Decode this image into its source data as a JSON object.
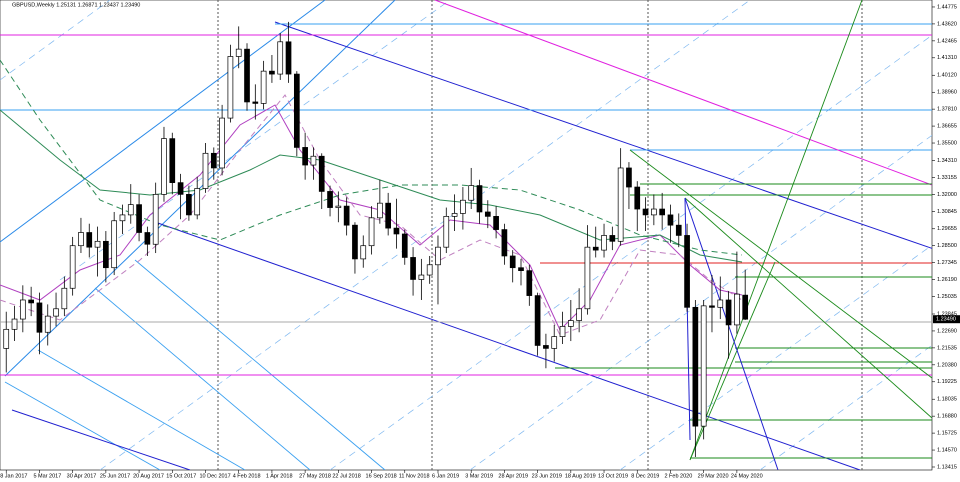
{
  "chart_data": {
    "type": "candlestick",
    "title": "GBPUSD,Weekly 1.25131 1.26871 1.23437 1.23490",
    "last_price_label": "1.23490",
    "xlim": [
      -1.5,
      223
    ],
    "ylim": [
      1.1321,
      1.4525
    ],
    "xticks": [
      {
        "value": 0,
        "label": "8 Jan 2017"
      },
      {
        "value": 8,
        "label": "5 Mar 2017"
      },
      {
        "value": 16,
        "label": "30 Apr 2017"
      },
      {
        "value": 24,
        "label": "25 Jun 2017"
      },
      {
        "value": 32,
        "label": "20 Aug 2017"
      },
      {
        "value": 40,
        "label": "15 Oct 2017"
      },
      {
        "value": 48,
        "label": "10 Dec 2017"
      },
      {
        "value": 56,
        "label": "4 Feb 2018"
      },
      {
        "value": 64,
        "label": "1 Apr 2018"
      },
      {
        "value": 72,
        "label": "27 May 2018"
      },
      {
        "value": 80,
        "label": "22 Jul 2018"
      },
      {
        "value": 88,
        "label": "16 Sep 2018"
      },
      {
        "value": 96,
        "label": "11 Nov 2018"
      },
      {
        "value": 104,
        "label": "6 Jan 2019"
      },
      {
        "value": 112,
        "label": "3 Mar 2019"
      },
      {
        "value": 120,
        "label": "28 Apr 2019"
      },
      {
        "value": 128,
        "label": "23 Jun 2019"
      },
      {
        "value": 136,
        "label": "18 Aug 2019"
      },
      {
        "value": 144,
        "label": "13 Oct 2019"
      },
      {
        "value": 152,
        "label": "8 Dec 2019"
      },
      {
        "value": 160,
        "label": "2 Feb 2020"
      },
      {
        "value": 168,
        "label": "29 Mar 2020"
      },
      {
        "value": 176,
        "label": "24 May 2020"
      }
    ],
    "yticks": [
      {
        "value": 1.44775,
        "label": "1.44775"
      },
      {
        "value": 1.4362,
        "label": "1.43620"
      },
      {
        "value": 1.42465,
        "label": "1.42465"
      },
      {
        "value": 1.4131,
        "label": "1.41310"
      },
      {
        "value": 1.4012,
        "label": "1.40120"
      },
      {
        "value": 1.3896,
        "label": "1.38960"
      },
      {
        "value": 1.3781,
        "label": "1.37810"
      },
      {
        "value": 1.36655,
        "label": "1.36655"
      },
      {
        "value": 1.355,
        "label": "1.35500"
      },
      {
        "value": 1.3431,
        "label": "1.34310"
      },
      {
        "value": 1.33155,
        "label": "1.33155"
      },
      {
        "value": 1.32,
        "label": "1.32000"
      },
      {
        "value": 1.30845,
        "label": "1.30845"
      },
      {
        "value": 1.29655,
        "label": "1.29655"
      },
      {
        "value": 1.285,
        "label": "1.28500"
      },
      {
        "value": 1.27345,
        "label": "1.27345"
      },
      {
        "value": 1.2619,
        "label": "1.26190"
      },
      {
        "value": 1.25035,
        "label": "1.25035"
      },
      {
        "value": 1.23845,
        "label": "1.23845"
      },
      {
        "value": 1.2269,
        "label": "1.22690"
      },
      {
        "value": 1.21535,
        "label": "1.21535"
      },
      {
        "value": 1.2038,
        "label": "1.20380"
      },
      {
        "value": 1.19225,
        "label": "1.19225"
      },
      {
        "value": 1.18035,
        "label": "1.18035"
      },
      {
        "value": 1.1688,
        "label": "1.16880"
      },
      {
        "value": 1.15725,
        "label": "1.15725"
      },
      {
        "value": 1.1457,
        "label": "1.14570"
      },
      {
        "value": 1.13415,
        "label": "1.13415"
      }
    ],
    "x": [
      0,
      2,
      4,
      6,
      8,
      10,
      12,
      14,
      16,
      18,
      20,
      22,
      24,
      26,
      28,
      30,
      32,
      34,
      36,
      38,
      40,
      42,
      44,
      46,
      48,
      50,
      52,
      54,
      56,
      58,
      60,
      62,
      64,
      66,
      68,
      70,
      72,
      74,
      76,
      78,
      80,
      82,
      84,
      86,
      88,
      90,
      92,
      94,
      96,
      98,
      100,
      102,
      104,
      106,
      108,
      110,
      112,
      114,
      116,
      118,
      120,
      122,
      124,
      126,
      128,
      130,
      132,
      134,
      136,
      138,
      140,
      142,
      144,
      146,
      148,
      150,
      152,
      154,
      156,
      158,
      160,
      162,
      164,
      166,
      168,
      170,
      172,
      174,
      176,
      178
    ],
    "open": [
      1.215,
      1.228,
      1.235,
      1.248,
      1.246,
      1.226,
      1.237,
      1.242,
      1.256,
      1.285,
      1.294,
      1.284,
      1.288,
      1.27,
      1.302,
      1.306,
      1.313,
      1.294,
      1.286,
      1.32,
      1.358,
      1.328,
      1.32,
      1.306,
      1.324,
      1.348,
      1.338,
      1.372,
      1.414,
      1.419,
      1.383,
      1.382,
      1.404,
      1.402,
      1.424,
      1.402,
      1.352,
      1.34,
      1.346,
      1.322,
      1.311,
      1.312,
      1.299,
      1.276,
      1.285,
      1.304,
      1.314,
      1.297,
      1.293,
      1.277,
      1.262,
      1.265,
      1.272,
      1.284,
      1.305,
      1.307,
      1.316,
      1.326,
      1.308,
      1.305,
      1.296,
      1.278,
      1.27,
      1.268,
      1.251,
      1.217,
      1.215,
      1.223,
      1.23,
      1.234,
      1.242,
      1.284,
      1.282,
      1.292,
      1.288,
      1.338,
      1.325,
      1.31,
      1.306,
      1.31,
      1.306,
      1.299,
      1.292,
      1.243,
      1.162,
      1.244,
      1.243,
      1.248,
      1.231,
      1.2513
    ],
    "high": [
      1.24,
      1.244,
      1.258,
      1.257,
      1.253,
      1.245,
      1.253,
      1.264,
      1.291,
      1.304,
      1.3,
      1.298,
      1.295,
      1.308,
      1.313,
      1.327,
      1.32,
      1.298,
      1.328,
      1.366,
      1.362,
      1.334,
      1.326,
      1.332,
      1.355,
      1.352,
      1.381,
      1.422,
      1.4345,
      1.423,
      1.395,
      1.411,
      1.415,
      1.43,
      1.4376,
      1.404,
      1.362,
      1.352,
      1.348,
      1.326,
      1.322,
      1.318,
      1.301,
      1.292,
      1.312,
      1.33,
      1.321,
      1.317,
      1.296,
      1.284,
      1.276,
      1.278,
      1.292,
      1.311,
      1.32,
      1.325,
      1.338,
      1.33,
      1.316,
      1.312,
      1.3,
      1.282,
      1.276,
      1.272,
      1.253,
      1.225,
      1.231,
      1.24,
      1.248,
      1.256,
      1.299,
      1.298,
      1.3,
      1.298,
      1.3515,
      1.342,
      1.329,
      1.318,
      1.32,
      1.321,
      1.313,
      1.307,
      1.3,
      1.248,
      1.248,
      1.265,
      1.264,
      1.254,
      1.281,
      1.2687
    ],
    "low": [
      1.1986,
      1.22,
      1.226,
      1.237,
      1.211,
      1.217,
      1.23,
      1.237,
      1.251,
      1.28,
      1.277,
      1.264,
      1.26,
      1.265,
      1.293,
      1.3,
      1.288,
      1.278,
      1.28,
      1.315,
      1.32,
      1.303,
      1.302,
      1.303,
      1.321,
      1.33,
      1.333,
      1.369,
      1.406,
      1.377,
      1.371,
      1.378,
      1.396,
      1.398,
      1.396,
      1.346,
      1.33,
      1.33,
      1.31,
      1.305,
      1.301,
      1.292,
      1.266,
      1.27,
      1.279,
      1.3,
      1.292,
      1.283,
      1.272,
      1.251,
      1.248,
      1.259,
      1.245,
      1.28,
      1.295,
      1.296,
      1.31,
      1.3,
      1.297,
      1.29,
      1.272,
      1.26,
      1.258,
      1.244,
      1.21,
      1.2015,
      1.206,
      1.218,
      1.22,
      1.226,
      1.238,
      1.277,
      1.277,
      1.282,
      1.285,
      1.31,
      1.295,
      1.295,
      1.299,
      1.296,
      1.287,
      1.284,
      1.24,
      1.141,
      1.153,
      1.226,
      1.235,
      1.208,
      1.225,
      1.2344
    ],
    "close": [
      1.228,
      1.235,
      1.248,
      1.246,
      1.226,
      1.237,
      1.242,
      1.256,
      1.285,
      1.294,
      1.284,
      1.288,
      1.27,
      1.302,
      1.306,
      1.313,
      1.294,
      1.286,
      1.32,
      1.358,
      1.328,
      1.32,
      1.306,
      1.324,
      1.348,
      1.338,
      1.372,
      1.414,
      1.419,
      1.383,
      1.382,
      1.404,
      1.402,
      1.424,
      1.402,
      1.352,
      1.34,
      1.346,
      1.322,
      1.311,
      1.312,
      1.299,
      1.276,
      1.285,
      1.304,
      1.314,
      1.297,
      1.293,
      1.277,
      1.262,
      1.265,
      1.272,
      1.284,
      1.305,
      1.307,
      1.316,
      1.326,
      1.308,
      1.305,
      1.296,
      1.278,
      1.27,
      1.268,
      1.251,
      1.217,
      1.215,
      1.223,
      1.23,
      1.234,
      1.242,
      1.284,
      1.282,
      1.292,
      1.288,
      1.338,
      1.325,
      1.31,
      1.306,
      1.31,
      1.306,
      1.299,
      1.292,
      1.243,
      1.162,
      1.244,
      1.243,
      1.248,
      1.231,
      1.252,
      1.2349
    ],
    "color": "#000000"
  }
}
